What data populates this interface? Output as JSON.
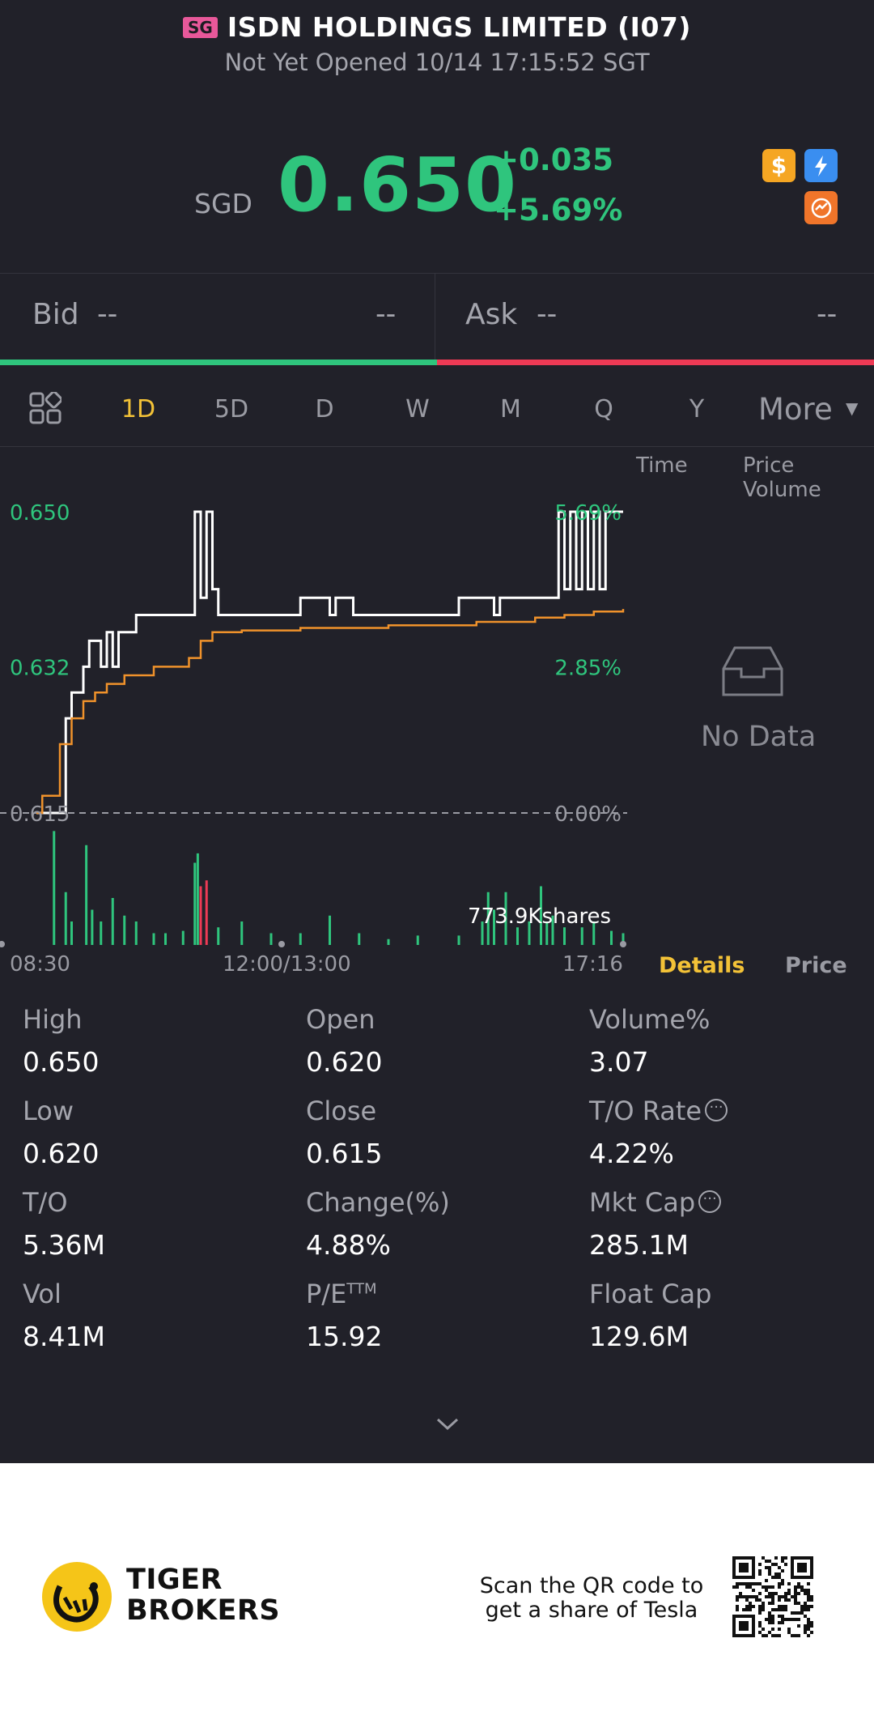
{
  "header": {
    "market_badge": "SG",
    "title": "ISDN HOLDINGS LIMITED (I07)",
    "status": "Not Yet Opened 10/14 17:15:52 SGT"
  },
  "quote": {
    "currency": "SGD",
    "price": "0.650",
    "change": "+0.035",
    "change_pct": "+5.69%",
    "icons": [
      "dollar-icon",
      "flash-icon",
      "swap-icon"
    ]
  },
  "bid_ask": {
    "bid_label": "Bid",
    "bid_price": "--",
    "bid_size": "--",
    "ask_label": "Ask",
    "ask_price": "--",
    "ask_size": "--"
  },
  "tabs": {
    "items": [
      "1D",
      "5D",
      "D",
      "W",
      "M",
      "Q",
      "Y"
    ],
    "active": "1D",
    "more": "More"
  },
  "chart_panel": {
    "side_time": "Time",
    "side_price_volume": "Price Volume",
    "no_data": "No Data",
    "details_tab": "Details",
    "price_tab": "Price",
    "volume_label": "773.9Kshares"
  },
  "chart_data": {
    "type": "line",
    "y_labels_left": [
      "0.650",
      "0.632",
      "0.615"
    ],
    "y_labels_right": [
      "5.69%",
      "2.85%",
      "0.00%"
    ],
    "x_labels": [
      "08:30",
      "12:00/13:00",
      "17:16"
    ],
    "ylim": [
      0.615,
      0.65
    ],
    "prev_close": 0.615,
    "series": [
      {
        "role": "price",
        "color": "#ffffff",
        "x": [
          0,
          0.005,
          0.05,
          0.06,
          0.08,
          0.09,
          0.11,
          0.12,
          0.13,
          0.14,
          0.16,
          0.17,
          0.26,
          0.27,
          0.28,
          0.29,
          0.3,
          0.31,
          0.44,
          0.45,
          0.49,
          0.5,
          0.51,
          0.53,
          0.54,
          0.71,
          0.72,
          0.78,
          0.79,
          0.88,
          0.89,
          0.9,
          0.91,
          0.92,
          0.93,
          0.94,
          0.95,
          0.96,
          0.97,
          1.0
        ],
        "y": [
          0.615,
          0.615,
          0.626,
          0.629,
          0.632,
          0.635,
          0.632,
          0.636,
          0.632,
          0.636,
          0.636,
          0.638,
          0.638,
          0.65,
          0.64,
          0.65,
          0.641,
          0.638,
          0.638,
          0.64,
          0.64,
          0.638,
          0.64,
          0.64,
          0.638,
          0.638,
          0.64,
          0.638,
          0.64,
          0.64,
          0.65,
          0.641,
          0.65,
          0.641,
          0.65,
          0.641,
          0.65,
          0.641,
          0.65,
          0.65
        ]
      },
      {
        "role": "avg",
        "color": "#f0922b",
        "x": [
          0,
          0.01,
          0.04,
          0.06,
          0.08,
          0.1,
          0.12,
          0.15,
          0.2,
          0.26,
          0.28,
          0.3,
          0.35,
          0.45,
          0.6,
          0.75,
          0.85,
          0.9,
          0.95,
          1.0
        ],
        "y": [
          0.615,
          0.617,
          0.623,
          0.626,
          0.628,
          0.629,
          0.63,
          0.631,
          0.632,
          0.633,
          0.635,
          0.636,
          0.6362,
          0.6365,
          0.6368,
          0.6372,
          0.6377,
          0.638,
          0.6384,
          0.6387
        ]
      }
    ],
    "volume_bars": {
      "x": [
        0.03,
        0.05,
        0.06,
        0.085,
        0.095,
        0.11,
        0.13,
        0.15,
        0.17,
        0.2,
        0.22,
        0.25,
        0.27,
        0.275,
        0.28,
        0.29,
        0.31,
        0.35,
        0.4,
        0.45,
        0.5,
        0.55,
        0.6,
        0.65,
        0.72,
        0.76,
        0.77,
        0.78,
        0.8,
        0.82,
        0.84,
        0.86,
        0.87,
        0.88,
        0.9,
        0.93,
        0.95,
        0.98,
        1.0
      ],
      "h": [
        0.97,
        0.45,
        0.2,
        0.85,
        0.3,
        0.2,
        0.4,
        0.25,
        0.2,
        0.1,
        0.1,
        0.12,
        0.7,
        0.78,
        0.5,
        0.55,
        0.15,
        0.2,
        0.1,
        0.1,
        0.25,
        0.1,
        0.05,
        0.08,
        0.08,
        0.2,
        0.45,
        0.3,
        0.45,
        0.15,
        0.2,
        0.5,
        0.2,
        0.25,
        0.15,
        0.15,
        0.2,
        0.12,
        0.1
      ],
      "red": [
        14,
        15
      ]
    }
  },
  "stats": {
    "high_label": "High",
    "high": "0.650",
    "open_label": "Open",
    "open": "0.620",
    "volpct_label": "Volume%",
    "volpct": "3.07",
    "low_label": "Low",
    "low": "0.620",
    "close_label": "Close",
    "close": "0.615",
    "tor_label": "T/O Rate",
    "tor": "4.22%",
    "to_label": "T/O",
    "to": "5.36M",
    "chgpct_label": "Change(%)",
    "chgpct": "4.88%",
    "mktcap_label": "Mkt Cap",
    "mktcap": "285.1M",
    "vol_label": "Vol",
    "vol": "8.41M",
    "pe_label": "P/E",
    "pe_sup": "TTM",
    "pe": "15.92",
    "floatcap_label": "Float Cap",
    "floatcap": "129.6M"
  },
  "footer": {
    "brand_line1": "TIGER",
    "brand_line2": "BROKERS",
    "promo_line1": "Scan the QR code to",
    "promo_line2": "get a share of Tesla"
  },
  "colors": {
    "up": "#2fc57d",
    "down": "#ee3a55",
    "accent": "#f3c237",
    "avg_line": "#f0922b",
    "background": "#212129"
  }
}
